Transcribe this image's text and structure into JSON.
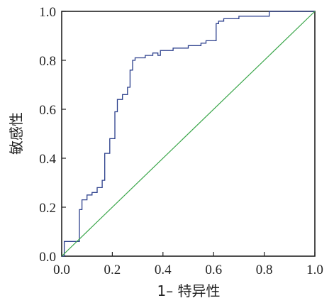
{
  "chart_data": {
    "type": "line",
    "xlabel": "1– 特异性",
    "ylabel": "敏感性",
    "xlim": [
      0,
      1
    ],
    "ylim": [
      0,
      1
    ],
    "x_ticks": [
      0.0,
      0.2,
      0.4,
      0.6,
      0.8,
      1.0
    ],
    "y_ticks": [
      0.0,
      0.2,
      0.4,
      0.6,
      0.8,
      1.0
    ],
    "x_tick_labels": [
      "0.0",
      "0.2",
      "0.4",
      "0.6",
      "0.8",
      "1.0"
    ],
    "y_tick_labels": [
      "0.0",
      "0.2",
      "0.4",
      "0.6",
      "0.8",
      "1.0"
    ],
    "grid": false,
    "series": [
      {
        "color": "#2b3f8c",
        "style": "step",
        "x": [
          0.0,
          0.01,
          0.01,
          0.07,
          0.07,
          0.08,
          0.08,
          0.1,
          0.1,
          0.12,
          0.12,
          0.14,
          0.14,
          0.16,
          0.16,
          0.17,
          0.17,
          0.19,
          0.19,
          0.21,
          0.21,
          0.22,
          0.22,
          0.24,
          0.24,
          0.26,
          0.26,
          0.27,
          0.27,
          0.28,
          0.28,
          0.29,
          0.29,
          0.33,
          0.33,
          0.36,
          0.36,
          0.38,
          0.38,
          0.39,
          0.39,
          0.44,
          0.44,
          0.5,
          0.5,
          0.55,
          0.55,
          0.57,
          0.57,
          0.61,
          0.61,
          0.62,
          0.62,
          0.64,
          0.64,
          0.7,
          0.7,
          0.82,
          0.82,
          1.0
        ],
        "y": [
          0.0,
          0.0,
          0.06,
          0.06,
          0.19,
          0.19,
          0.23,
          0.23,
          0.25,
          0.25,
          0.26,
          0.26,
          0.28,
          0.28,
          0.31,
          0.31,
          0.42,
          0.42,
          0.48,
          0.48,
          0.59,
          0.59,
          0.64,
          0.64,
          0.66,
          0.66,
          0.69,
          0.69,
          0.76,
          0.76,
          0.8,
          0.8,
          0.81,
          0.81,
          0.82,
          0.82,
          0.83,
          0.83,
          0.82,
          0.82,
          0.84,
          0.84,
          0.85,
          0.85,
          0.86,
          0.86,
          0.87,
          0.87,
          0.88,
          0.88,
          0.95,
          0.95,
          0.96,
          0.96,
          0.97,
          0.97,
          0.98,
          0.98,
          1.0,
          1.0
        ]
      },
      {
        "color": "#3aa64a",
        "style": "reference",
        "x": [
          0.0,
          1.0
        ],
        "y": [
          0.0,
          1.0
        ]
      }
    ]
  }
}
